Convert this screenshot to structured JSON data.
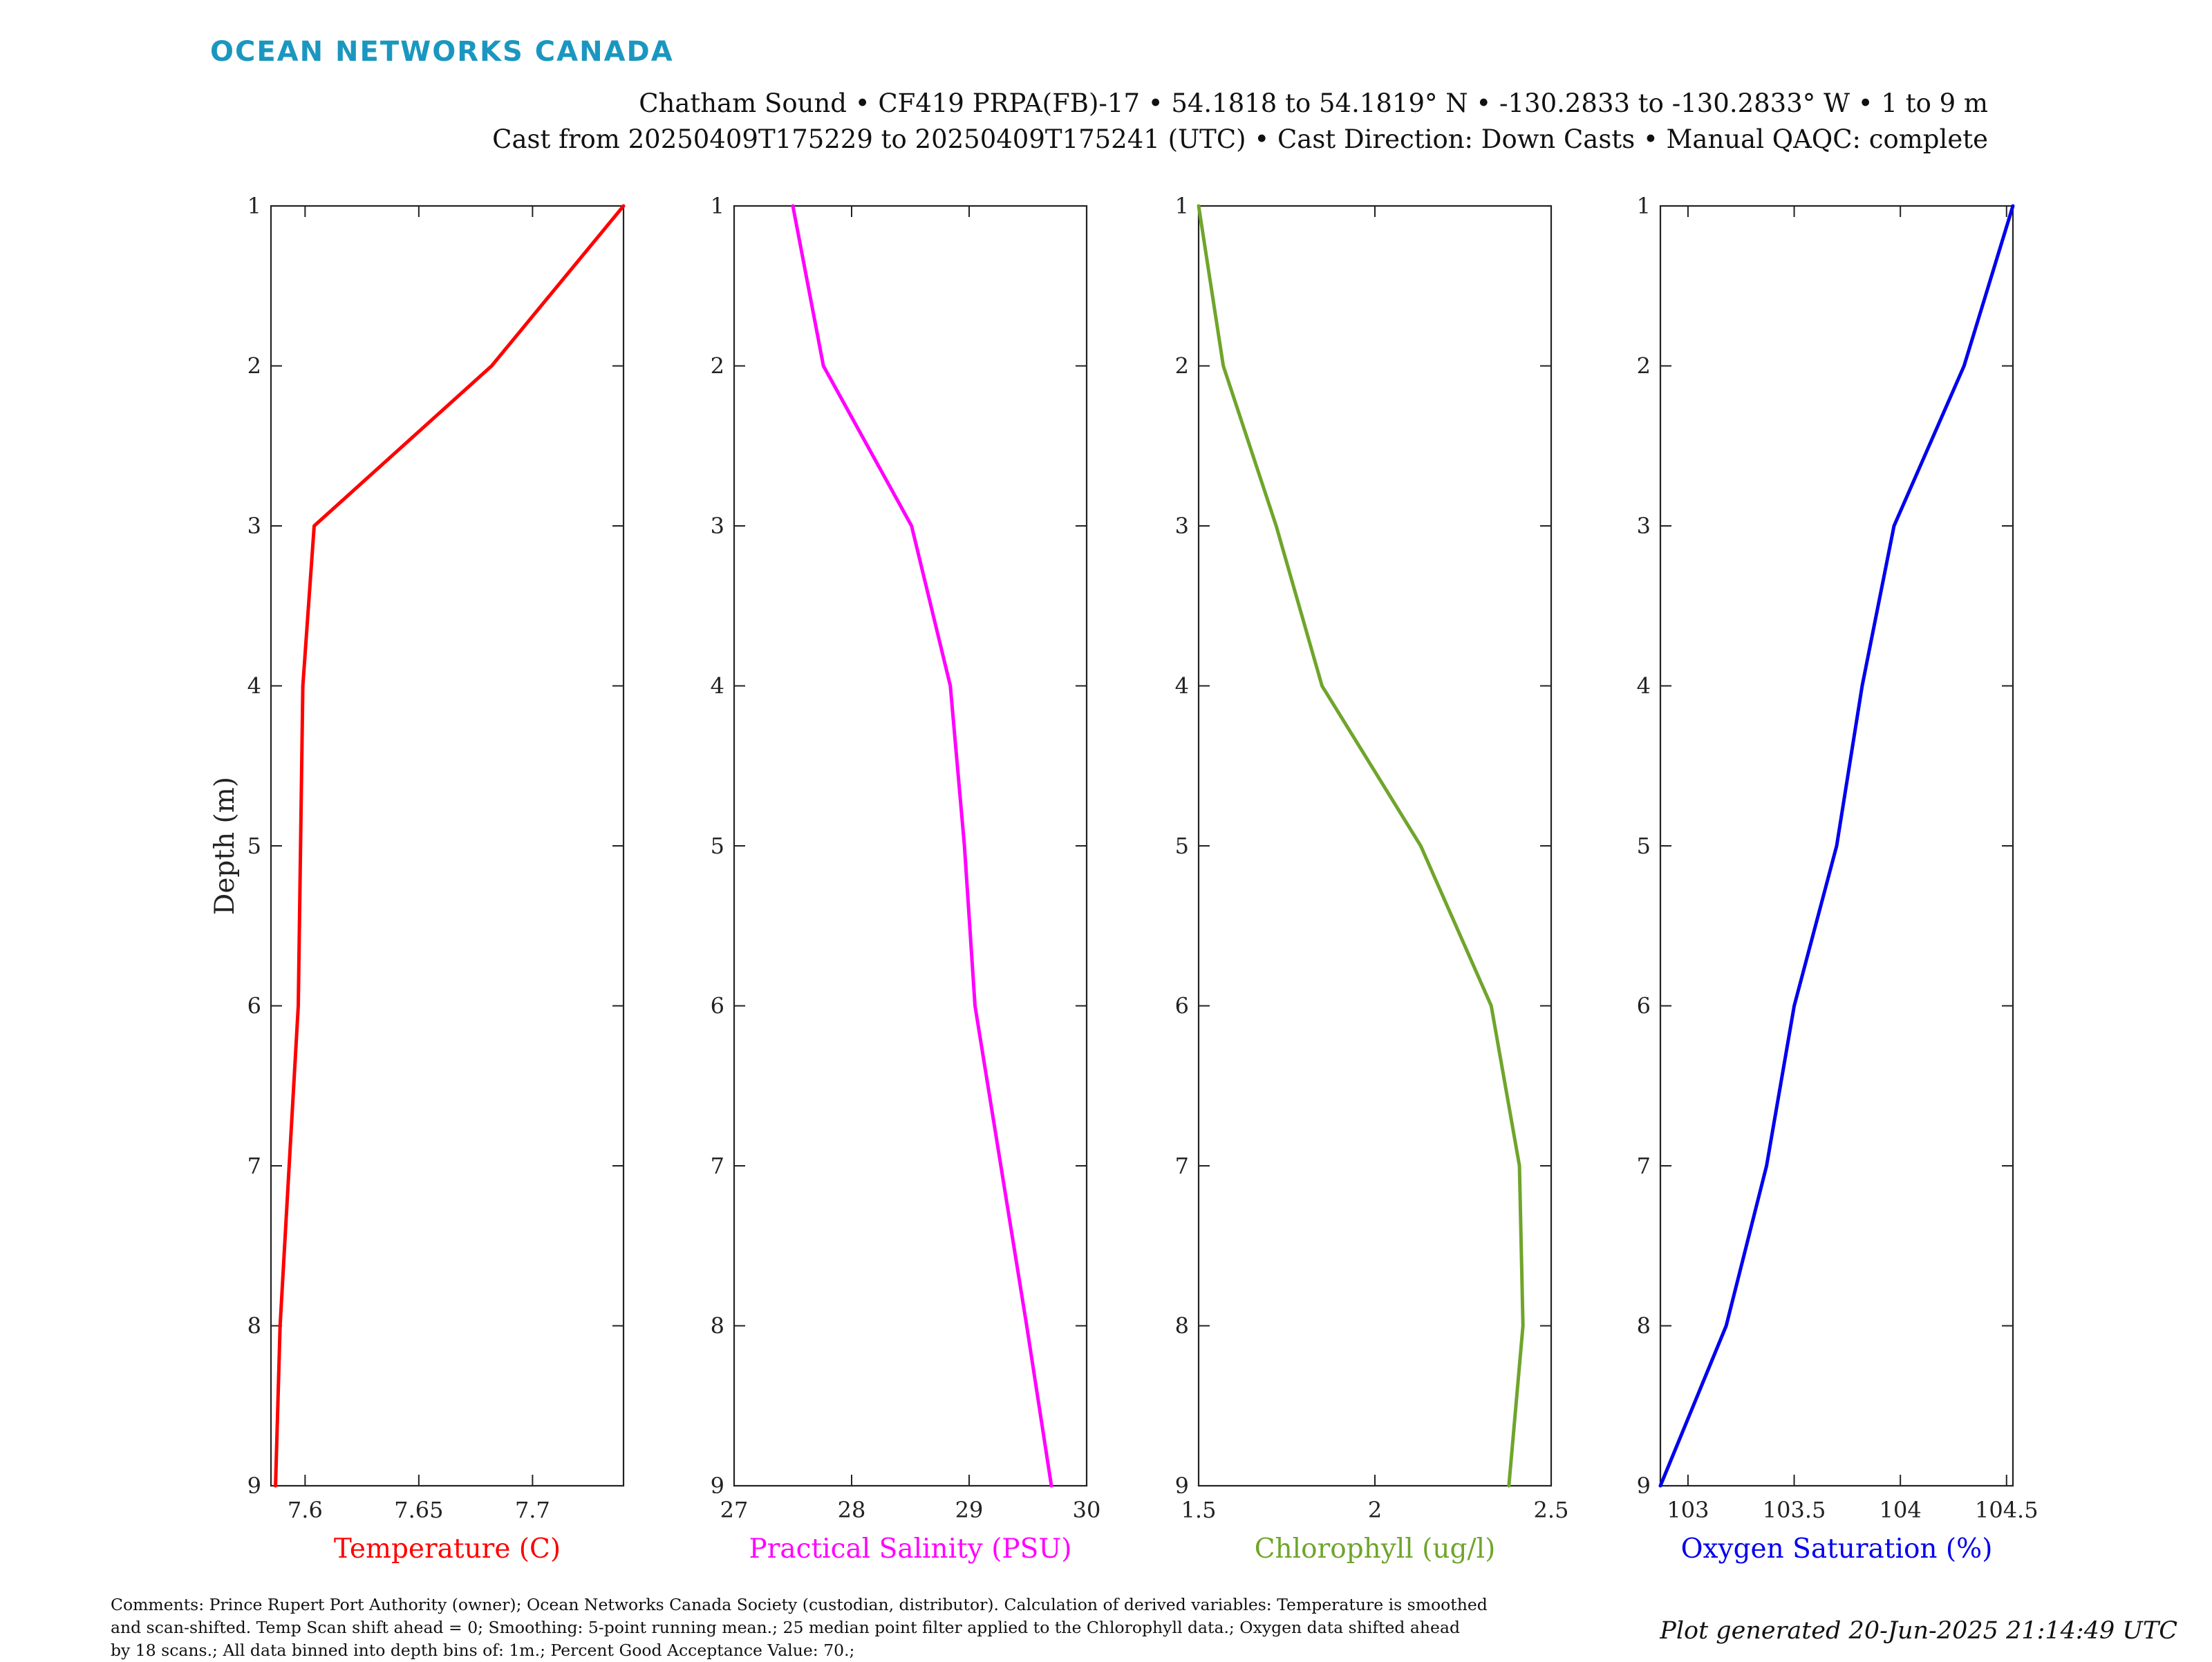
{
  "header": {
    "logo": "OCEAN NETWORKS CANADA",
    "title_line1": "Chatham Sound • CF419 PRPA(FB)-17 • 54.1818 to 54.1819° N • -130.2833 to -130.2833° W • 1 to 9 m",
    "title_line2": "Cast from 20250409T175229 to 20250409T175241 (UTC) • Cast Direction: Down Casts • Manual QAQC: complete"
  },
  "chart_data": {
    "type": "line",
    "ylabel": "Depth (m)",
    "y_axis": {
      "range": [
        1,
        9
      ],
      "inverted": true,
      "ticks": [
        "1",
        "2",
        "3",
        "4",
        "5",
        "6",
        "7",
        "8",
        "9"
      ]
    },
    "depth": [
      1,
      2,
      3,
      4,
      5,
      6,
      7,
      8,
      9
    ],
    "panels": [
      {
        "xlabel": "Temperature (C)",
        "color": "#ff0000",
        "xlim": [
          7.585,
          7.74
        ],
        "xticks": [
          7.6,
          7.65,
          7.7
        ],
        "xtick_labels": [
          "7.6",
          "7.65",
          "7.7"
        ],
        "values": [
          7.74,
          7.682,
          7.604,
          7.599,
          7.598,
          7.597,
          7.593,
          7.589,
          7.587
        ]
      },
      {
        "xlabel": "Practical Salinity (PSU)",
        "color": "#ff00ff",
        "xlim": [
          27,
          30
        ],
        "xticks": [
          27,
          28,
          29,
          30
        ],
        "xtick_labels": [
          "27",
          "28",
          "29",
          "30"
        ],
        "values": [
          27.5,
          27.76,
          28.51,
          28.84,
          28.96,
          29.05,
          29.27,
          29.49,
          29.7
        ]
      },
      {
        "xlabel": "Chlorophyll (ug/l)",
        "color": "#6fa52b",
        "xlim": [
          1.5,
          2.5
        ],
        "xticks": [
          1.5,
          2,
          2.5
        ],
        "xtick_labels": [
          "1.5",
          "2",
          "2.5"
        ],
        "values": [
          1.5,
          1.57,
          1.72,
          1.85,
          2.13,
          2.33,
          2.41,
          2.42,
          2.38
        ]
      },
      {
        "xlabel": "Oxygen Saturation (%)",
        "color": "#0000ee",
        "xlim": [
          102.87,
          104.53
        ],
        "xticks": [
          103,
          103.5,
          104,
          104.5
        ],
        "xtick_labels": [
          "103",
          "103.5",
          "104",
          "104.5"
        ],
        "values": [
          104.53,
          104.3,
          103.97,
          103.82,
          103.7,
          103.5,
          103.37,
          103.18,
          102.87
        ]
      }
    ]
  },
  "footer": {
    "comments_line1": "Comments: Prince Rupert Port Authority (owner); Ocean Networks Canada Society (custodian, distributor). Calculation of derived variables: Temperature is smoothed",
    "comments_line2": "and scan-shifted. Temp Scan shift ahead = 0; Smoothing: 5-point running mean.; 25 median point filter applied to the Chlorophyll data.; Oxygen data shifted ahead",
    "comments_line3": "by 18 scans.; All data binned into depth bins of: 1m.; Percent Good Acceptance Value: 70.;",
    "generated": "Plot generated 20-Jun-2025 21:14:49 UTC"
  }
}
